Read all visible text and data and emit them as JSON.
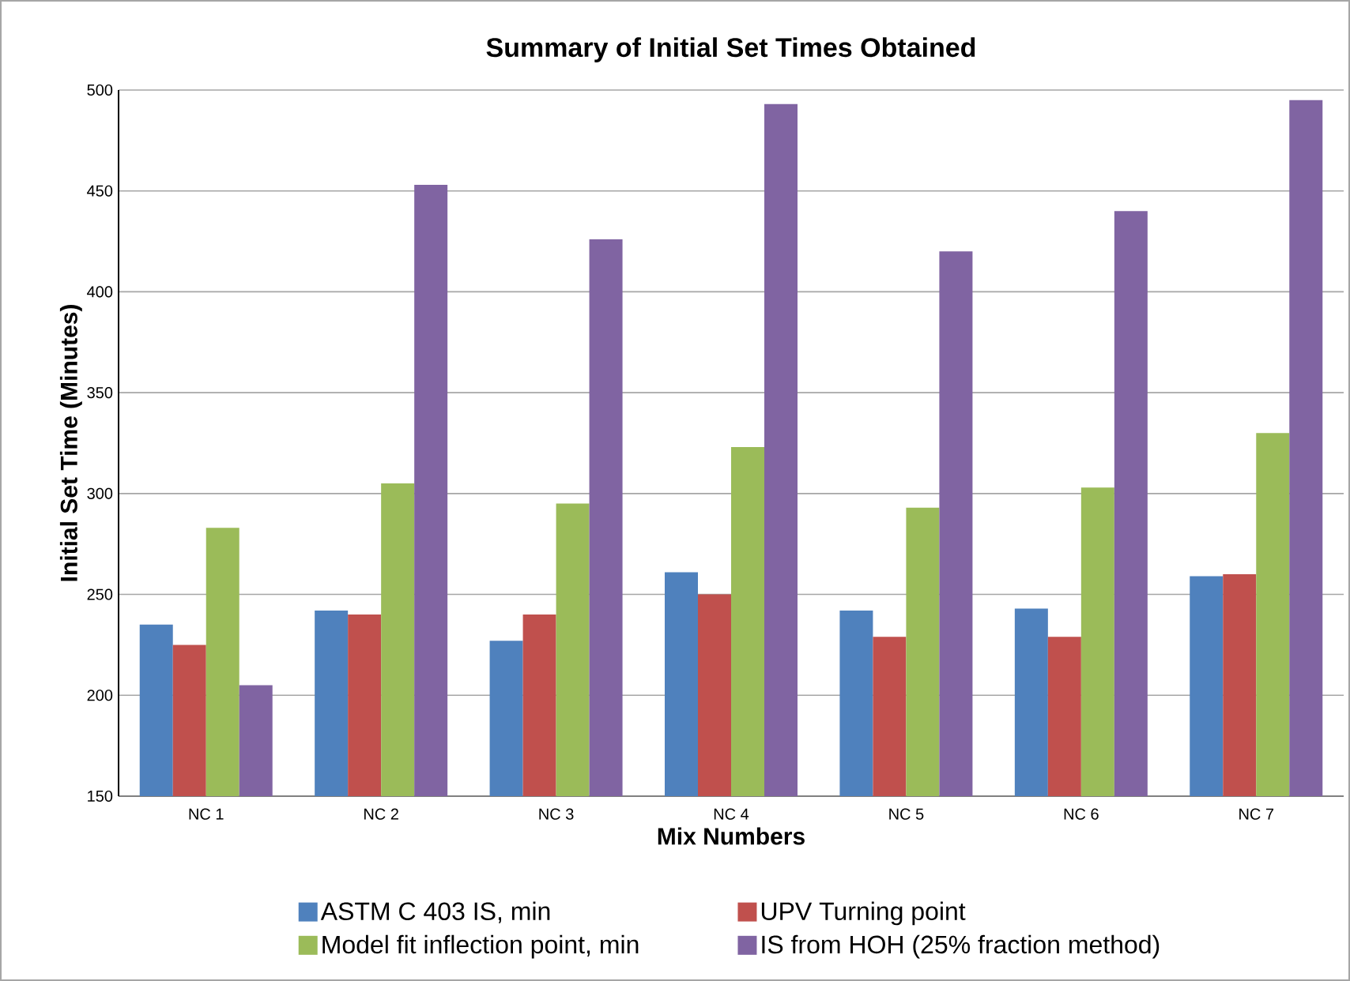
{
  "chart_data": {
    "type": "bar",
    "title": "Summary of Initial Set Times Obtained",
    "xlabel": "Mix Numbers",
    "ylabel": "Initial Set Time (Minutes)",
    "categories": [
      "NC 1",
      "NC 2",
      "NC 3",
      "NC 4",
      "NC 5",
      "NC 6",
      "NC 7"
    ],
    "series": [
      {
        "name": "ASTM C 403 IS, min",
        "color": "#4f81bd",
        "values": [
          235,
          242,
          227,
          261,
          242,
          243,
          259
        ]
      },
      {
        "name": "UPV Turning point",
        "color": "#c0504d",
        "values": [
          225,
          240,
          240,
          250,
          229,
          229,
          260
        ]
      },
      {
        "name": "Model fit inflection point, min",
        "color": "#9bbb59",
        "values": [
          283,
          305,
          295,
          323,
          293,
          303,
          330
        ]
      },
      {
        "name": "IS from HOH (25% fraction method)",
        "color": "#8064a2",
        "values": [
          205,
          453,
          426,
          493,
          420,
          440,
          495
        ]
      }
    ],
    "ylim": [
      150,
      500
    ],
    "yticks": [
      150,
      200,
      250,
      300,
      350,
      400,
      450,
      500
    ],
    "grid": "y",
    "legend": "bottom"
  }
}
